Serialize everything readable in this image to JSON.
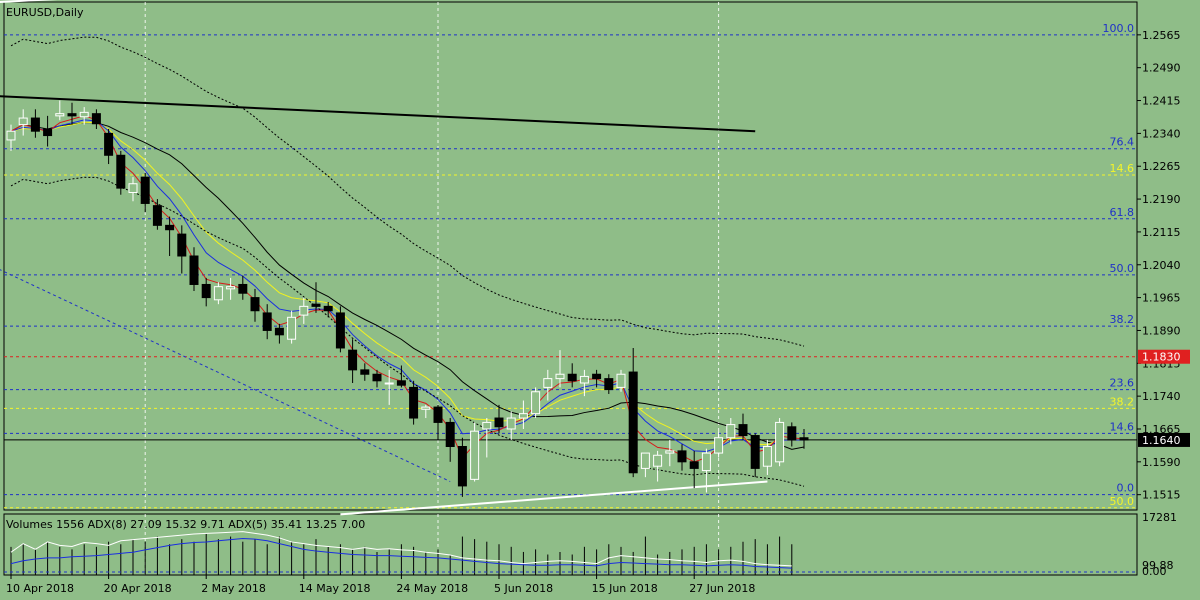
{
  "title": "EURUSD,Daily",
  "indicator_label": "Volumes 1556 ADX(8) 27.09 15.32 9.71 ADX(5) 35.41 13.25 7.00",
  "colors": {
    "background": "#8fbd88",
    "bull_candle": "#ffffff",
    "bear_candle": "#000000",
    "fib_blue": "#1f31c8",
    "fib_yellow": "#f5f528",
    "current_price": "#000000",
    "marked_level": "#e02020",
    "ma_red": "#d61a1a",
    "ma_blue": "#1a2ee0",
    "ma_yellow": "#f2f21e",
    "ma_black": "#000000",
    "trendline": "#ffffff",
    "adx_white": "#ffffff",
    "adx_blue": "#1a2ee0"
  },
  "chart_data": [
    {
      "type": "candlestick",
      "symbol": "EURUSD",
      "timeframe": "Daily",
      "ylim": [
        1.148,
        1.264
      ],
      "y_ticks": [
        "1.2565",
        "1.2490",
        "1.2415",
        "1.2340",
        "1.2265",
        "1.2190",
        "1.2115",
        "1.2040",
        "1.1965",
        "1.1890",
        "1.1815",
        "1.1740",
        "1.1665",
        "1.1590",
        "1.1515"
      ],
      "x_ticks": [
        {
          "label": "10 Apr 2018",
          "index": 0
        },
        {
          "label": "20 Apr 2018",
          "index": 8
        },
        {
          "label": "2 May 2018",
          "index": 16
        },
        {
          "label": "14 May 2018",
          "index": 24
        },
        {
          "label": "24 May 2018",
          "index": 32
        },
        {
          "label": "5 Jun 2018",
          "index": 40
        },
        {
          "label": "15 Jun 2018",
          "index": 48
        },
        {
          "label": "27 Jun 2018",
          "index": 56
        }
      ],
      "grid_dates": [
        11,
        35,
        58
      ],
      "candles": [
        {
          "o": 1.2325,
          "h": 1.236,
          "l": 1.23,
          "c": 1.2345
        },
        {
          "o": 1.236,
          "h": 1.2395,
          "l": 1.2335,
          "c": 1.2375
        },
        {
          "o": 1.2375,
          "h": 1.2395,
          "l": 1.233,
          "c": 1.2345
        },
        {
          "o": 1.235,
          "h": 1.238,
          "l": 1.231,
          "c": 1.2335
        },
        {
          "o": 1.238,
          "h": 1.2415,
          "l": 1.237,
          "c": 1.2385
        },
        {
          "o": 1.2385,
          "h": 1.241,
          "l": 1.236,
          "c": 1.238
        },
        {
          "o": 1.2378,
          "h": 1.24,
          "l": 1.236,
          "c": 1.2388
        },
        {
          "o": 1.2385,
          "h": 1.2395,
          "l": 1.235,
          "c": 1.2362
        },
        {
          "o": 1.234,
          "h": 1.235,
          "l": 1.227,
          "c": 1.229
        },
        {
          "o": 1.229,
          "h": 1.23,
          "l": 1.22,
          "c": 1.2215
        },
        {
          "o": 1.2205,
          "h": 1.224,
          "l": 1.2185,
          "c": 1.2225
        },
        {
          "o": 1.224,
          "h": 1.225,
          "l": 1.216,
          "c": 1.218
        },
        {
          "o": 1.2175,
          "h": 1.219,
          "l": 1.212,
          "c": 1.213
        },
        {
          "o": 1.213,
          "h": 1.215,
          "l": 1.206,
          "c": 1.212
        },
        {
          "o": 1.211,
          "h": 1.213,
          "l": 1.202,
          "c": 1.206
        },
        {
          "o": 1.206,
          "h": 1.208,
          "l": 1.198,
          "c": 1.1995
        },
        {
          "o": 1.1995,
          "h": 1.201,
          "l": 1.1945,
          "c": 1.1965
        },
        {
          "o": 1.196,
          "h": 1.2,
          "l": 1.195,
          "c": 1.199
        },
        {
          "o": 1.1985,
          "h": 1.201,
          "l": 1.196,
          "c": 1.199
        },
        {
          "o": 1.1995,
          "h": 1.2015,
          "l": 1.196,
          "c": 1.1975
        },
        {
          "o": 1.1965,
          "h": 1.1985,
          "l": 1.191,
          "c": 1.1935
        },
        {
          "o": 1.193,
          "h": 1.195,
          "l": 1.187,
          "c": 1.189
        },
        {
          "o": 1.1895,
          "h": 1.1905,
          "l": 1.186,
          "c": 1.188
        },
        {
          "o": 1.187,
          "h": 1.1935,
          "l": 1.186,
          "c": 1.192
        },
        {
          "o": 1.1925,
          "h": 1.1965,
          "l": 1.1905,
          "c": 1.1945
        },
        {
          "o": 1.195,
          "h": 1.2,
          "l": 1.193,
          "c": 1.1945
        },
        {
          "o": 1.1945,
          "h": 1.1955,
          "l": 1.192,
          "c": 1.1935
        },
        {
          "o": 1.193,
          "h": 1.1945,
          "l": 1.184,
          "c": 1.185
        },
        {
          "o": 1.1845,
          "h": 1.187,
          "l": 1.177,
          "c": 1.18
        },
        {
          "o": 1.18,
          "h": 1.1815,
          "l": 1.1775,
          "c": 1.179
        },
        {
          "o": 1.179,
          "h": 1.18,
          "l": 1.176,
          "c": 1.1775
        },
        {
          "o": 1.177,
          "h": 1.18,
          "l": 1.172,
          "c": 1.177
        },
        {
          "o": 1.1775,
          "h": 1.181,
          "l": 1.176,
          "c": 1.1765
        },
        {
          "o": 1.176,
          "h": 1.1775,
          "l": 1.1675,
          "c": 1.169
        },
        {
          "o": 1.171,
          "h": 1.172,
          "l": 1.169,
          "c": 1.1715
        },
        {
          "o": 1.1715,
          "h": 1.172,
          "l": 1.164,
          "c": 1.168
        },
        {
          "o": 1.168,
          "h": 1.169,
          "l": 1.159,
          "c": 1.1625
        },
        {
          "o": 1.1625,
          "h": 1.1645,
          "l": 1.151,
          "c": 1.1535
        },
        {
          "o": 1.155,
          "h": 1.168,
          "l": 1.1545,
          "c": 1.166
        },
        {
          "o": 1.1665,
          "h": 1.169,
          "l": 1.16,
          "c": 1.168
        },
        {
          "o": 1.169,
          "h": 1.172,
          "l": 1.1655,
          "c": 1.167
        },
        {
          "o": 1.1665,
          "h": 1.1705,
          "l": 1.164,
          "c": 1.169
        },
        {
          "o": 1.169,
          "h": 1.173,
          "l": 1.1665,
          "c": 1.17
        },
        {
          "o": 1.17,
          "h": 1.176,
          "l": 1.169,
          "c": 1.175
        },
        {
          "o": 1.176,
          "h": 1.18,
          "l": 1.173,
          "c": 1.178
        },
        {
          "o": 1.178,
          "h": 1.1845,
          "l": 1.176,
          "c": 1.179
        },
        {
          "o": 1.179,
          "h": 1.1815,
          "l": 1.176,
          "c": 1.1775
        },
        {
          "o": 1.177,
          "h": 1.18,
          "l": 1.174,
          "c": 1.1785
        },
        {
          "o": 1.179,
          "h": 1.18,
          "l": 1.176,
          "c": 1.178
        },
        {
          "o": 1.178,
          "h": 1.179,
          "l": 1.1745,
          "c": 1.1755
        },
        {
          "o": 1.176,
          "h": 1.18,
          "l": 1.175,
          "c": 1.179
        },
        {
          "o": 1.1795,
          "h": 1.185,
          "l": 1.1555,
          "c": 1.1565
        },
        {
          "o": 1.1575,
          "h": 1.161,
          "l": 1.1555,
          "c": 1.161
        },
        {
          "o": 1.158,
          "h": 1.1615,
          "l": 1.1545,
          "c": 1.1605
        },
        {
          "o": 1.161,
          "h": 1.164,
          "l": 1.158,
          "c": 1.1615
        },
        {
          "o": 1.1615,
          "h": 1.163,
          "l": 1.157,
          "c": 1.159
        },
        {
          "o": 1.159,
          "h": 1.1615,
          "l": 1.153,
          "c": 1.1575
        },
        {
          "o": 1.157,
          "h": 1.162,
          "l": 1.152,
          "c": 1.161
        },
        {
          "o": 1.161,
          "h": 1.166,
          "l": 1.16,
          "c": 1.1645
        },
        {
          "o": 1.1645,
          "h": 1.169,
          "l": 1.163,
          "c": 1.1675
        },
        {
          "o": 1.1675,
          "h": 1.17,
          "l": 1.164,
          "c": 1.165
        },
        {
          "o": 1.165,
          "h": 1.1655,
          "l": 1.1555,
          "c": 1.1575
        },
        {
          "o": 1.158,
          "h": 1.164,
          "l": 1.156,
          "c": 1.1625
        },
        {
          "o": 1.159,
          "h": 1.169,
          "l": 1.158,
          "c": 1.168
        },
        {
          "o": 1.167,
          "h": 1.168,
          "l": 1.1625,
          "c": 1.164
        },
        {
          "o": 1.1645,
          "h": 1.1665,
          "l": 1.162,
          "c": 1.164
        }
      ],
      "fib_levels": [
        {
          "label": "100.0",
          "price": 1.2565,
          "color": "blue"
        },
        {
          "label": "76.4",
          "price": 1.2305,
          "color": "blue"
        },
        {
          "label": "14.6",
          "price": 1.2245,
          "color": "yellow"
        },
        {
          "label": "61.8",
          "price": 1.2145,
          "color": "blue"
        },
        {
          "label": "50.0",
          "price": 1.2017,
          "color": "blue"
        },
        {
          "label": "38.2",
          "price": 1.19,
          "color": "blue"
        },
        {
          "label": "23.6",
          "price": 1.1755,
          "color": "blue"
        },
        {
          "label": "38.2",
          "price": 1.1712,
          "color": "yellow"
        },
        {
          "label": "14.6",
          "price": 1.1655,
          "color": "blue"
        },
        {
          "label": "0.0",
          "price": 1.1515,
          "color": "blue"
        },
        {
          "label": "50.0",
          "price": 1.1485,
          "color": "yellow"
        }
      ],
      "marked_price": {
        "label": "1.1830",
        "price": 1.183
      },
      "current_price": {
        "label": "1.1640",
        "price": 1.164
      },
      "trendlines": [
        {
          "color": "black",
          "from": {
            "index": -1,
            "price": 1.2425
          },
          "to": {
            "index": 61,
            "price": 1.2345
          }
        },
        {
          "color": "white",
          "from": {
            "index": -1,
            "price": 1.264
          },
          "to": {
            "index": 13,
            "price": 1.266
          }
        },
        {
          "color": "white",
          "from": {
            "index": 27,
            "price": 1.147
          },
          "to": {
            "index": 62,
            "price": 1.1545
          }
        },
        {
          "color": "blue",
          "from": {
            "index": -1,
            "price": 1.203
          },
          "to": {
            "index": 36,
            "price": 1.1545
          }
        }
      ]
    },
    {
      "type": "line",
      "panel": "ADX / Volumes",
      "ylim": [
        0,
        17281
      ],
      "y_ticks": [
        "17281",
        "99.88",
        "0.00"
      ],
      "volume_bars": [
        11,
        12,
        10,
        13,
        11,
        10,
        12,
        11,
        13,
        12,
        14,
        13,
        15,
        12,
        14,
        13,
        16,
        14,
        15,
        13,
        14,
        12,
        15,
        13,
        12,
        14,
        11,
        12,
        10,
        11,
        9,
        10,
        12,
        11,
        9,
        10,
        8,
        15,
        14,
        13,
        12,
        11,
        9,
        10,
        8,
        9,
        8,
        11,
        10,
        12,
        11,
        9,
        15,
        8,
        9,
        10,
        11,
        12,
        10,
        11,
        13,
        14,
        12,
        15,
        12
      ],
      "series": [
        {
          "color": "white",
          "values": [
            40,
            55,
            45,
            58,
            52,
            50,
            57,
            55,
            52,
            60,
            62,
            64,
            66,
            68,
            70,
            72,
            73,
            74,
            75,
            76,
            73,
            70,
            65,
            58,
            55,
            52,
            50,
            48,
            45,
            48,
            45,
            46,
            44,
            43,
            40,
            38,
            35,
            30,
            28,
            26,
            25,
            22,
            20,
            22,
            24,
            25,
            24,
            22,
            20,
            30,
            34,
            32,
            30,
            28,
            27,
            25,
            24,
            22,
            25,
            26,
            24,
            20,
            18,
            17,
            16
          ]
        },
        {
          "color": "blue",
          "values": [
            20,
            25,
            28,
            30,
            30,
            32,
            33,
            34,
            36,
            38,
            40,
            44,
            48,
            52,
            55,
            57,
            58,
            60,
            62,
            64,
            63,
            60,
            55,
            50,
            45,
            42,
            40,
            38,
            36,
            35,
            34,
            34,
            33,
            32,
            31,
            30,
            28,
            26,
            24,
            22,
            20,
            19,
            18,
            17,
            17,
            18,
            18,
            17,
            16,
            20,
            22,
            21,
            20,
            19,
            18,
            18,
            17,
            16,
            17,
            18,
            17,
            15,
            14,
            13,
            12
          ]
        }
      ]
    }
  ]
}
